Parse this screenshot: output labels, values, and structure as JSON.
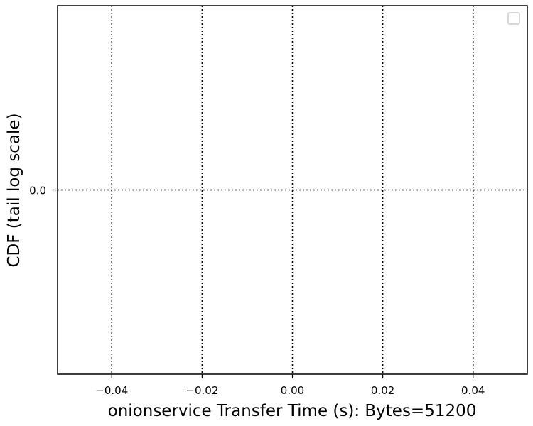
{
  "chart_data": {
    "type": "line",
    "series": [],
    "xlabel": "onionservice Transfer Time (s): Bytes=51200",
    "ylabel": "CDF (tail log scale)",
    "xlim": [
      -0.052,
      0.052
    ],
    "x_ticks": [
      -0.04,
      -0.02,
      0.0,
      0.02,
      0.04
    ],
    "x_tick_labels": [
      "−0.04",
      "−0.02",
      "0.00",
      "0.02",
      "0.04"
    ],
    "y_ticks": [
      0.0
    ],
    "y_tick_labels": [
      "0.0"
    ],
    "grid": true,
    "grid_style": "dotted",
    "legend": {
      "placement": "top-right",
      "entries": []
    }
  }
}
